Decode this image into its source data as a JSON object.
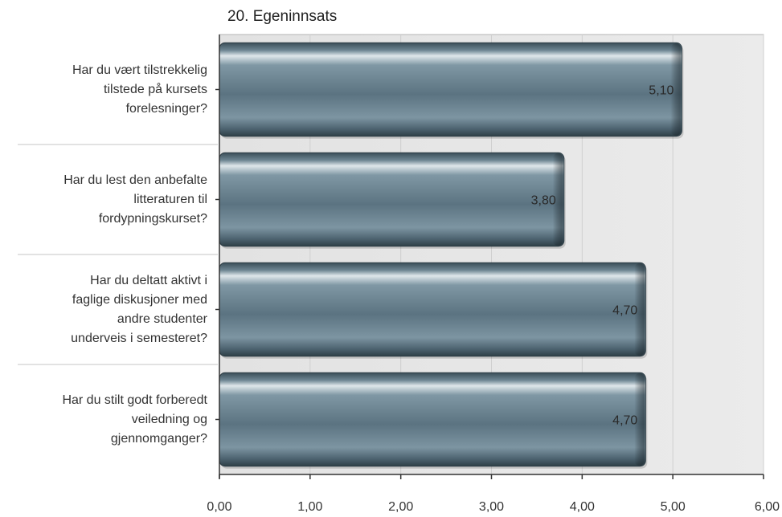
{
  "chart_data": {
    "type": "bar",
    "orientation": "horizontal",
    "title": "20. Egeninnsats",
    "xlabel": "",
    "ylabel": "",
    "categories": [
      "Har du vært tilstrekkelig\ntilstede på kursets\nforelesninger?",
      "Har du lest den anbefalte\nlitteraturen til\nfordypningskurset?",
      "Har du deltatt aktivt i\nfaglige diskusjoner med\nandre studenter\nunderveis i semesteret?",
      "Har du stilt godt forberedt\nveiledning og\ngjennomganger?"
    ],
    "values": [
      5.1,
      3.8,
      4.7,
      4.7
    ],
    "value_labels": [
      "5,10",
      "3,80",
      "4,70",
      "4,70"
    ],
    "xlim": [
      0,
      6
    ],
    "x_ticks": [
      0,
      1,
      2,
      3,
      4,
      5,
      6
    ],
    "x_tick_labels": [
      "0,00",
      "1,00",
      "2,00",
      "3,00",
      "4,00",
      "5,00",
      "6,00"
    ],
    "grid": true,
    "legend": "none",
    "colors": {
      "bar_base": "#5d7684",
      "bar_dark": "#34474f",
      "bar_light": "#c5d2d9",
      "plot_background": "#e8e8e8",
      "grid_line": "#cfcfcf",
      "axis_line": "#333333"
    }
  }
}
